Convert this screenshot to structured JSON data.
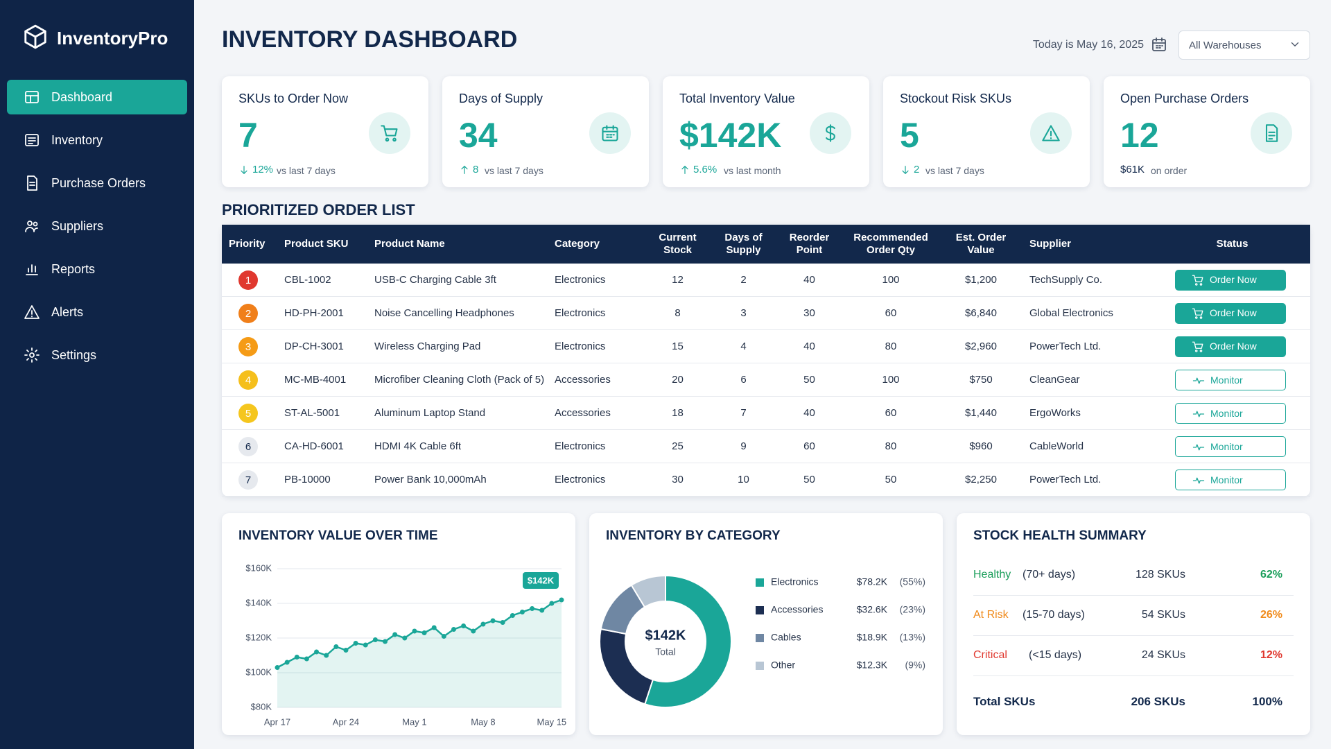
{
  "sidebar": {
    "brand": "InventoryPro",
    "nav": [
      "Dashboard",
      "Inventory",
      "Purchase Orders",
      "Suppliers",
      "Reports",
      "Alerts",
      "Settings"
    ]
  },
  "header": {
    "title": "INVENTORY DASHBOARD",
    "date": "Today is May 16, 2025",
    "warehouse": "All Warehouses"
  },
  "kpis": [
    {
      "label": "SKUs to Order Now",
      "value": "7",
      "change": "12%",
      "note": "vs last 7 days",
      "trend": "down"
    },
    {
      "label": "Days of Supply",
      "value": "34",
      "change": "8",
      "note": "vs last 7 days",
      "trend": "up"
    },
    {
      "label": "Total Inventory Value",
      "value": "$142K",
      "change": "5.6%",
      "note": "vs last month",
      "trend": "up"
    },
    {
      "label": "Stockout Risk SKUs",
      "value": "5",
      "change": "2",
      "note": "vs last 7 days",
      "trend": "down"
    },
    {
      "label": "Open Purchase Orders",
      "value": "12",
      "change": "$61K",
      "note": "on order"
    }
  ],
  "order_list": {
    "title": "PRIORITIZED ORDER LIST",
    "columns": [
      "Priority",
      "Product SKU",
      "Product Name",
      "Category",
      "Current Stock",
      "Days of Supply",
      "Reorder Point",
      "Recommended Order Qty",
      "Est. Order Value",
      "Supplier",
      "Status"
    ],
    "rows": [
      [
        1,
        "CBL-1002",
        "USB-C Charging Cable 3ft",
        "Electronics",
        12,
        2,
        40,
        100,
        "$1,200",
        "TechSupply Co.",
        "Order Now"
      ],
      [
        2,
        "HD-PH-2001",
        "Noise Cancelling Headphones",
        "Electronics",
        8,
        3,
        30,
        60,
        "$6,840",
        "Global Electronics",
        "Order Now"
      ],
      [
        3,
        "DP-CH-3001",
        "Wireless Charging Pad",
        "Electronics",
        15,
        4,
        40,
        80,
        "$2,960",
        "PowerTech Ltd.",
        "Order Now"
      ],
      [
        4,
        "MC-MB-4001",
        "Microfiber Cleaning Cloth (Pack of 5)",
        "Accessories",
        20,
        6,
        50,
        100,
        "$750",
        "CleanGear",
        "Monitor"
      ],
      [
        5,
        "ST-AL-5001",
        "Aluminum Laptop Stand",
        "Accessories",
        18,
        7,
        40,
        60,
        "$1,440",
        "ErgoWorks",
        "Monitor"
      ],
      [
        6,
        "CA-HD-6001",
        "HDMI 4K Cable 6ft",
        "Electronics",
        25,
        9,
        60,
        80,
        "$960",
        "CableWorld",
        "Monitor"
      ],
      [
        7,
        "PB-10000",
        "Power Bank 10,000mAh",
        "Electronics",
        30,
        10,
        50,
        50,
        "$2,250",
        "PowerTech Ltd.",
        "Monitor"
      ]
    ]
  },
  "chart_data": [
    {
      "type": "line",
      "title": "INVENTORY VALUE OVER TIME",
      "categories": [
        "Apr 17",
        null,
        null,
        null,
        null,
        null,
        null,
        "Apr 24",
        null,
        null,
        null,
        null,
        null,
        null,
        "May 1",
        null,
        null,
        null,
        null,
        null,
        null,
        "May 8",
        null,
        null,
        null,
        null,
        null,
        null,
        "May 15",
        null
      ],
      "values": [
        103000,
        106000,
        109000,
        108000,
        112000,
        110000,
        115000,
        113000,
        117000,
        116000,
        119000,
        118000,
        122000,
        120000,
        124000,
        123000,
        126000,
        121000,
        125000,
        127000,
        124000,
        128000,
        130000,
        129000,
        133000,
        135000,
        137000,
        136000,
        140000,
        142000
      ],
      "color": "#1aa698",
      "ylim": [
        80000,
        160000
      ],
      "yticks": [
        {
          "value": 80000,
          "label": "$80K"
        },
        {
          "value": 100000,
          "label": "$100K"
        },
        {
          "value": 120000,
          "label": "$120K"
        },
        {
          "value": 140000,
          "label": "$140K"
        },
        {
          "value": 160000,
          "label": "$160K"
        }
      ],
      "grid": true,
      "annotation": "$142K"
    },
    {
      "type": "pie",
      "title": "INVENTORY BY CATEGORY",
      "categories": [
        "Electronics",
        "Accessories",
        "Cables",
        "Other"
      ],
      "values": [
        78200,
        32600,
        18900,
        12300
      ],
      "value_labels": [
        "$78.2K",
        "$32.6K",
        "$18.9K",
        "$12.3K"
      ],
      "shares": [
        55,
        23,
        13,
        9
      ],
      "share_labels": [
        "(55%)",
        "(23%)",
        "(13%)",
        "(9%)"
      ],
      "colors": [
        "#1aa698",
        "#1c2e52",
        "#6f87a3",
        "#b8c6d4"
      ],
      "center_label": "$142K",
      "center_sublabel": "Total"
    }
  ],
  "stock_health": {
    "title": "STOCK HEALTH SUMMARY",
    "rows": [
      {
        "label": "Healthy",
        "range": "(70+ days)",
        "skus": "128 SKUs",
        "share": "62%"
      },
      {
        "label": "At Risk",
        "range": "(15-70 days)",
        "skus": "54 SKUs",
        "share": "26%"
      },
      {
        "label": "Critical",
        "range": "(<15 days)",
        "skus": "24 SKUs",
        "share": "12%"
      }
    ],
    "total": {
      "label": "Total SKUs",
      "skus": "206 SKUs",
      "share": "100%"
    }
  }
}
